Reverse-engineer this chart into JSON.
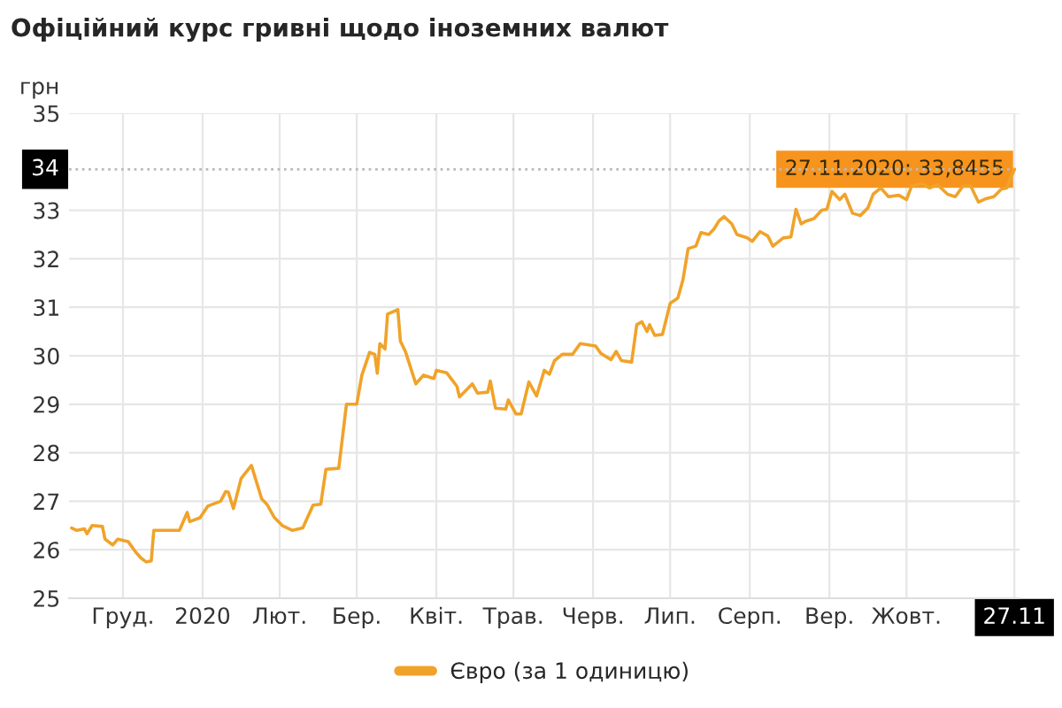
{
  "chart_data": {
    "type": "line",
    "title": "Офіційний курс гривні щодо іноземних валют",
    "ylabel": "грн",
    "x": [
      "2019-11-26",
      "2019-11-28",
      "2019-12-01",
      "2019-12-02",
      "2019-12-04",
      "2019-12-08",
      "2019-12-09",
      "2019-12-12",
      "2019-12-14",
      "2019-12-18",
      "2019-12-21",
      "2019-12-23",
      "2019-12-25",
      "2019-12-27",
      "2019-12-28",
      "2020-01-07",
      "2020-01-10",
      "2020-01-11",
      "2020-01-15",
      "2020-01-18",
      "2020-01-23",
      "2020-01-25",
      "2020-01-26",
      "2020-01-28",
      "2020-01-31",
      "2020-02-04",
      "2020-02-08",
      "2020-02-10",
      "2020-02-13",
      "2020-02-16",
      "2020-02-20",
      "2020-02-24",
      "2020-02-28",
      "2020-03-02",
      "2020-03-04",
      "2020-03-09",
      "2020-03-12",
      "2020-03-16",
      "2020-03-18",
      "2020-03-21",
      "2020-03-23",
      "2020-03-24",
      "2020-03-25",
      "2020-03-27",
      "2020-03-28",
      "2020-04-01",
      "2020-04-02",
      "2020-04-04",
      "2020-04-08",
      "2020-04-11",
      "2020-04-15",
      "2020-04-16",
      "2020-04-20",
      "2020-04-24",
      "2020-04-25",
      "2020-04-30",
      "2020-05-02",
      "2020-05-06",
      "2020-05-07",
      "2020-05-09",
      "2020-05-13",
      "2020-05-14",
      "2020-05-17",
      "2020-05-19",
      "2020-05-22",
      "2020-05-25",
      "2020-05-28",
      "2020-05-30",
      "2020-06-01",
      "2020-06-04",
      "2020-06-08",
      "2020-06-11",
      "2020-06-17",
      "2020-06-19",
      "2020-06-23",
      "2020-06-25",
      "2020-06-27",
      "2020-07-01",
      "2020-07-03",
      "2020-07-05",
      "2020-07-07",
      "2020-07-08",
      "2020-07-10",
      "2020-07-13",
      "2020-07-16",
      "2020-07-19",
      "2020-07-21",
      "2020-07-23",
      "2020-07-26",
      "2020-07-28",
      "2020-07-31",
      "2020-08-02",
      "2020-08-04",
      "2020-08-06",
      "2020-08-09",
      "2020-08-11",
      "2020-08-15",
      "2020-08-17",
      "2020-08-20",
      "2020-08-23",
      "2020-08-25",
      "2020-08-29",
      "2020-09-01",
      "2020-09-03",
      "2020-09-05",
      "2020-09-07",
      "2020-09-10",
      "2020-09-13",
      "2020-09-15",
      "2020-09-17",
      "2020-09-20",
      "2020-09-22",
      "2020-09-25",
      "2020-09-28",
      "2020-10-01",
      "2020-10-03",
      "2020-10-06",
      "2020-10-09",
      "2020-10-13",
      "2020-10-16",
      "2020-10-18",
      "2020-10-22",
      "2020-10-25",
      "2020-10-28",
      "2020-11-01",
      "2020-11-04",
      "2020-11-07",
      "2020-11-10",
      "2020-11-13",
      "2020-11-16",
      "2020-11-19",
      "2020-11-22",
      "2020-11-24",
      "2020-11-27"
    ],
    "series": [
      {
        "name": "Євро (за 1 одиницю)",
        "color": "#f0a32a",
        "values": [
          26.45,
          26.4,
          26.43,
          26.33,
          26.5,
          26.48,
          26.22,
          26.1,
          26.22,
          26.17,
          25.95,
          25.83,
          25.75,
          25.77,
          26.4,
          26.4,
          26.77,
          26.58,
          26.66,
          26.9,
          27.0,
          27.2,
          27.19,
          26.85,
          27.47,
          27.74,
          27.05,
          26.94,
          26.66,
          26.5,
          26.4,
          26.45,
          26.92,
          26.94,
          27.66,
          27.68,
          29.0,
          29.0,
          29.6,
          30.07,
          30.03,
          29.64,
          30.25,
          30.14,
          30.86,
          30.95,
          30.3,
          30.08,
          29.42,
          29.6,
          29.53,
          29.7,
          29.65,
          29.37,
          29.15,
          29.42,
          29.23,
          29.25,
          29.48,
          28.92,
          28.9,
          29.09,
          28.8,
          28.8,
          29.46,
          29.17,
          29.7,
          29.62,
          29.9,
          30.03,
          30.03,
          30.25,
          30.2,
          30.05,
          29.92,
          30.09,
          29.9,
          29.87,
          30.64,
          30.7,
          30.5,
          30.64,
          30.42,
          30.44,
          31.08,
          31.19,
          31.57,
          32.21,
          32.26,
          32.54,
          32.5,
          32.61,
          32.78,
          32.87,
          32.72,
          32.5,
          32.43,
          32.36,
          32.56,
          32.47,
          32.26,
          32.43,
          32.45,
          33.02,
          32.72,
          32.78,
          32.83,
          33.0,
          33.02,
          33.39,
          33.22,
          33.33,
          32.94,
          32.89,
          33.05,
          33.33,
          33.46,
          33.28,
          33.31,
          33.22,
          33.5,
          33.55,
          33.46,
          33.53,
          33.33,
          33.28,
          33.5,
          33.5,
          33.17,
          33.24,
          33.28,
          33.44,
          33.46,
          33.8455
        ]
      }
    ],
    "xlim": [
      "2019-11-25",
      "2020-11-29"
    ],
    "xticks": [
      {
        "value": "2019-12-16",
        "label": "Груд."
      },
      {
        "value": "2020-01-16",
        "label": "2020"
      },
      {
        "value": "2020-02-15",
        "label": "Лют."
      },
      {
        "value": "2020-03-16",
        "label": "Бер."
      },
      {
        "value": "2020-04-16",
        "label": "Квіт."
      },
      {
        "value": "2020-05-16",
        "label": "Трав."
      },
      {
        "value": "2020-06-16",
        "label": "Черв."
      },
      {
        "value": "2020-07-16",
        "label": "Лип."
      },
      {
        "value": "2020-08-16",
        "label": "Серп."
      },
      {
        "value": "2020-09-16",
        "label": "Вер."
      },
      {
        "value": "2020-10-16",
        "label": "Жовт."
      },
      {
        "value": "2020-11-27",
        "label": "27.11"
      }
    ],
    "ylim": [
      25,
      35
    ],
    "yticks": [
      25,
      26,
      27,
      28,
      29,
      30,
      31,
      32,
      33,
      35
    ],
    "ref_lines": [
      {
        "axis": "y",
        "value": 33.8455,
        "label": "34",
        "color": "#bbbbbb",
        "line_style": "dotted"
      }
    ],
    "annotations": [
      {
        "text": "27.11.2020: 33,8455",
        "x": "2020-11-27",
        "y": 33.8455
      }
    ],
    "grid": true,
    "legend": "bottom",
    "line_style": "solid",
    "marker": "none"
  }
}
